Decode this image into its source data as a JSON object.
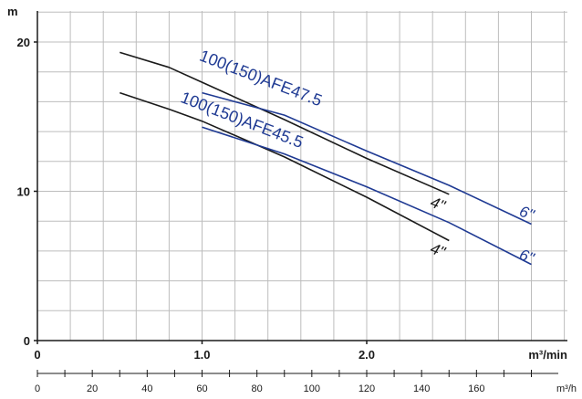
{
  "chart_data": {
    "type": "line",
    "y_unit": "m",
    "x_unit": "m³/min",
    "x2_unit": "m³/h",
    "xlim": [
      0,
      3.2
    ],
    "ylim": [
      0,
      22
    ],
    "x2lim": [
      0,
      192
    ],
    "x_ticks": [
      {
        "value": 0,
        "label": "0"
      },
      {
        "value": 1.0,
        "label": "1.0"
      },
      {
        "value": 2.0,
        "label": "2.0"
      }
    ],
    "y_ticks": [
      {
        "value": 0,
        "label": "0"
      },
      {
        "value": 10,
        "label": "10"
      },
      {
        "value": 20,
        "label": "20"
      }
    ],
    "x2_ticks": [
      {
        "value": 0,
        "label": "0"
      },
      {
        "value": 20,
        "label": "20"
      },
      {
        "value": 40,
        "label": "40"
      },
      {
        "value": 60,
        "label": "60"
      },
      {
        "value": 80,
        "label": "80"
      },
      {
        "value": 100,
        "label": "100"
      },
      {
        "value": 120,
        "label": "120"
      },
      {
        "value": 140,
        "label": "140"
      },
      {
        "value": 160,
        "label": "160"
      }
    ],
    "grid": true,
    "series": [
      {
        "name": "100(150)AFE47.5",
        "pipe_label": "4\"",
        "color": "#1a1a1a",
        "x": [
          0.5,
          0.8,
          1.0,
          1.5,
          2.0,
          2.5
        ],
        "y": [
          19.3,
          18.3,
          17.3,
          14.8,
          12.2,
          9.8
        ]
      },
      {
        "name": "100(150)AFE47.5",
        "pipe_label": "6\"",
        "color": "#1f3a93",
        "x": [
          1.0,
          1.5,
          2.0,
          2.5,
          3.0
        ],
        "y": [
          16.6,
          15.1,
          12.7,
          10.4,
          7.8
        ]
      },
      {
        "name": "100(150)AFE45.5",
        "pipe_label": "4\"",
        "color": "#1a1a1a",
        "x": [
          0.5,
          0.8,
          1.0,
          1.5,
          2.0,
          2.5
        ],
        "y": [
          16.6,
          15.5,
          14.7,
          12.3,
          9.6,
          6.7
        ]
      },
      {
        "name": "100(150)AFE45.5",
        "pipe_label": "6\"",
        "color": "#1f3a93",
        "x": [
          1.0,
          1.5,
          2.0,
          2.5,
          3.0
        ],
        "y": [
          14.3,
          12.5,
          10.3,
          7.9,
          5.1
        ]
      }
    ],
    "labels": {
      "series_a_name": "100(150)AFE47.5",
      "series_b_name": "100(150)AFE45.5",
      "pipe_4": "4\"",
      "pipe_6": "6\""
    }
  }
}
